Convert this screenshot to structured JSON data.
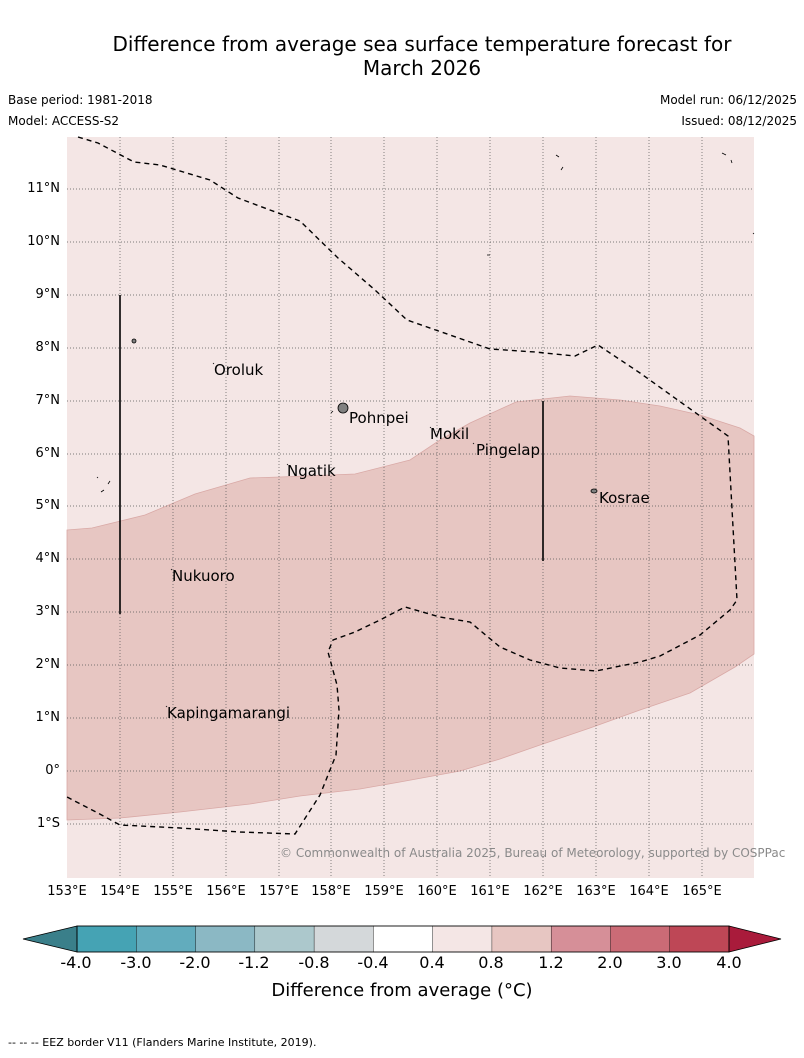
{
  "title_line1": "Difference from average sea surface temperature forecast for",
  "title_line2": "March 2026",
  "base_period": "Base period: 1981-2018",
  "model": "Model: ACCESS-S2",
  "model_run": "Model run: 06/12/2025",
  "issued": "Issued: 08/12/2025",
  "lat_labels": [
    "11°N",
    "10°N",
    "9°N",
    "8°N",
    "7°N",
    "6°N",
    "5°N",
    "4°N",
    "3°N",
    "2°N",
    "1°N",
    "0°",
    "1°S"
  ],
  "lon_labels": [
    "153°E",
    "154°E",
    "155°E",
    "156°E",
    "157°E",
    "158°E",
    "159°E",
    "160°E",
    "161°E",
    "162°E",
    "163°E",
    "164°E",
    "165°E"
  ],
  "places": {
    "oroluk": "Oroluk",
    "pohnpei": "Pohnpei",
    "mokil": "Mokil",
    "pingelap": "Pingelap",
    "ngatik": "Ngatik",
    "kosrae": "Kosrae",
    "nukuoro": "Nukuoro",
    "kapinga": "Kapingamarangi"
  },
  "copyright": "© Commonwealth of Australia 2025, Bureau of Meteorology, supported by COSPPac",
  "colorbar": {
    "ticks": [
      "-4.0",
      "-3.0",
      "-2.0",
      "-1.2",
      "-0.8",
      "-0.4",
      "0.4",
      "0.8",
      "1.2",
      "2.0",
      "3.0",
      "4.0"
    ],
    "colors": [
      "#45a3b4",
      "#62acbd",
      "#8bb8c4",
      "#acc8cc",
      "#d4d8da",
      "#ffffff",
      "#f4e6e5",
      "#e7c6c2",
      "#d68f98",
      "#cb6b76",
      "#be4756"
    ],
    "low_extend_color": "#3a7f8a",
    "high_extend_color": "#a91b3b",
    "label": "Difference from average (°C)"
  },
  "footnote": "--  --  -- EEZ border V11 (Flanders Marine Institute, 2019)."
}
